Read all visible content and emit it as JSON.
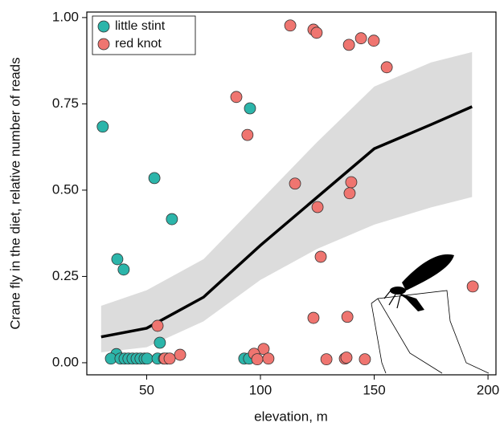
{
  "chart_data": {
    "type": "scatter",
    "xlabel": "elevation, m",
    "ylabel": "Crane fly in the diet, relative number of reads",
    "xlim": [
      23.7,
      203.5
    ],
    "ylim": [
      -0.035,
      1.016
    ],
    "xticks": [
      50,
      100,
      150,
      200
    ],
    "yticks": [
      {
        "value": 0,
        "label": "0.00"
      },
      0.25,
      {
        "value": 0.5,
        "label": "0.50"
      },
      0.75,
      {
        "value": 1,
        "label": "1.00"
      }
    ],
    "grid": false,
    "legend": "top-left",
    "series": [
      {
        "name": "little stint",
        "color": "#2cb5aa",
        "x": [
          30.7,
          53.4,
          61.1,
          37.1,
          39.9,
          95.4,
          55.8,
          36.7,
          34.3,
          38.5,
          40.3,
          42,
          43.8,
          45.6,
          47.3,
          49.1,
          50.2,
          54.8,
          57.6,
          59,
          92.9,
          95
        ],
        "values": [
          0.684,
          0.535,
          0.416,
          0.3,
          0.27,
          0.737,
          0.058,
          0.025,
          0.012,
          0.012,
          0.012,
          0.012,
          0.012,
          0.012,
          0.012,
          0.012,
          0.012,
          0.012,
          0.012,
          0.012,
          0.012,
          0.012
        ]
      },
      {
        "name": "red knot",
        "color": "#ef7570",
        "x": [
          113.1,
          123.3,
          124.7,
          144.2,
          149.8,
          138.9,
          155.5,
          89.4,
          94.3,
          115.2,
          139.9,
          139.2,
          125.1,
          126.5,
          193.3,
          54.8,
          123.3,
          138.2,
          101.4,
          97.2,
          64.7,
          58,
          60.1,
          98.6,
          103.5,
          129,
          137.1,
          137.8,
          145.9
        ],
        "values": [
          0.977,
          0.965,
          0.956,
          0.94,
          0.933,
          0.921,
          0.856,
          0.77,
          0.66,
          0.519,
          0.523,
          0.491,
          0.451,
          0.307,
          0.221,
          0.107,
          0.13,
          0.133,
          0.04,
          0.026,
          0.023,
          0.012,
          0.012,
          0.01,
          0.012,
          0.01,
          0.012,
          0.015,
          0.01
        ]
      }
    ],
    "fit_x": [
      30,
      50,
      75,
      100,
      125,
      150,
      175,
      193
    ],
    "fit_values": [
      0.075,
      0.1,
      0.19,
      0.34,
      0.48,
      0.62,
      0.69,
      0.742
    ],
    "band_lower": [
      0.03,
      0.045,
      0.12,
      0.24,
      0.33,
      0.4,
      0.45,
      0.48
    ],
    "band_upper": [
      0.165,
      0.21,
      0.3,
      0.47,
      0.64,
      0.8,
      0.87,
      0.9
    ],
    "band_color": "#dcdcdc",
    "fit_color": "#000000"
  }
}
